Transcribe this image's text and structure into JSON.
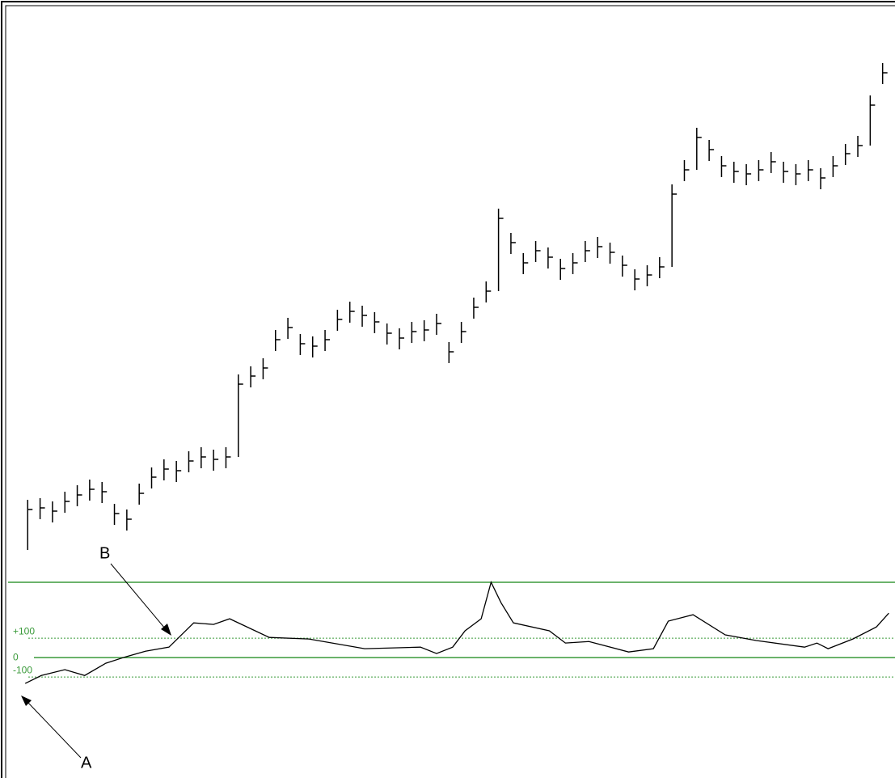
{
  "chart_data": [
    {
      "type": "ohlc",
      "color": "#000000",
      "x": [
        1,
        2,
        3,
        4,
        5,
        6,
        7,
        8,
        9,
        10,
        11,
        12,
        13,
        14,
        15,
        16,
        17,
        18,
        19,
        20,
        21,
        22,
        23,
        24,
        25,
        26,
        27,
        28,
        29,
        30,
        31,
        32,
        33,
        34,
        35,
        36,
        37,
        38,
        39,
        40,
        41,
        42,
        43,
        44,
        45,
        46,
        47,
        48,
        49,
        50,
        51,
        52,
        53,
        54,
        55,
        56,
        57,
        58,
        59,
        60,
        61,
        62,
        63,
        64,
        65,
        66,
        67,
        68,
        69,
        70
      ],
      "high": [
        72,
        74,
        70,
        82,
        90,
        97,
        94,
        67,
        60,
        92,
        112,
        122,
        120,
        132,
        137,
        134,
        137,
        227,
        237,
        247,
        282,
        297,
        277,
        274,
        282,
        307,
        317,
        312,
        304,
        290,
        284,
        292,
        294,
        302,
        267,
        292,
        322,
        342,
        432,
        402,
        377,
        392,
        384,
        370,
        377,
        392,
        397,
        390,
        374,
        357,
        362,
        372,
        462,
        492,
        532,
        517,
        497,
        490,
        487,
        492,
        502,
        490,
        487,
        492,
        482,
        497,
        512,
        522,
        572,
        612
      ],
      "low": [
        10,
        48,
        44,
        56,
        64,
        71,
        68,
        41,
        34,
        66,
        86,
        96,
        94,
        106,
        111,
        108,
        111,
        125,
        211,
        221,
        256,
        271,
        251,
        248,
        256,
        281,
        291,
        286,
        278,
        264,
        258,
        266,
        268,
        276,
        241,
        266,
        296,
        316,
        330,
        376,
        351,
        366,
        358,
        344,
        351,
        366,
        371,
        364,
        348,
        331,
        336,
        346,
        360,
        466,
        480,
        491,
        471,
        464,
        461,
        466,
        476,
        464,
        461,
        466,
        456,
        471,
        486,
        496,
        510,
        586
      ],
      "close": [
        60,
        62,
        58,
        70,
        78,
        85,
        82,
        55,
        48,
        80,
        100,
        110,
        108,
        120,
        125,
        122,
        125,
        215,
        225,
        235,
        270,
        285,
        265,
        262,
        270,
        295,
        305,
        300,
        292,
        278,
        272,
        280,
        282,
        290,
        255,
        280,
        310,
        330,
        420,
        390,
        365,
        380,
        372,
        358,
        365,
        380,
        385,
        378,
        362,
        345,
        350,
        360,
        450,
        480,
        520,
        505,
        485,
        478,
        475,
        480,
        490,
        478,
        475,
        480,
        470,
        485,
        500,
        510,
        560,
        600
      ],
      "xlim": [
        0.2,
        71
      ],
      "ylim": [
        -25,
        680
      ]
    },
    {
      "type": "line",
      "color": "#000000",
      "level_color": "#3a9a3a",
      "x": [
        0.8,
        2.1,
        4,
        5.6,
        7.3,
        8.9,
        10.5,
        12.4,
        14.4,
        16,
        17.3,
        20.5,
        23.7,
        28.2,
        32.7,
        34,
        35.3,
        36.3,
        37.6,
        38.4,
        39.2,
        40.2,
        43.1,
        44.4,
        46.3,
        49.5,
        51.5,
        52.7,
        54.7,
        57.3,
        59.8,
        63.7,
        64.7,
        65.6,
        67.6,
        69.5,
        70.5
      ],
      "values": [
        -133,
        -92,
        -62,
        -92,
        -29,
        4,
        33,
        54,
        179,
        171,
        200,
        104,
        96,
        46,
        54,
        21,
        54,
        138,
        200,
        388,
        283,
        179,
        138,
        75,
        83,
        29,
        46,
        188,
        221,
        117,
        88,
        54,
        75,
        46,
        96,
        158,
        229
      ],
      "xlim": [
        0.2,
        71
      ],
      "ylim": [
        -620,
        388
      ],
      "yticks": [
        {
          "value": 100,
          "label": "+100"
        },
        0,
        {
          "value": -100,
          "label": "-100"
        }
      ],
      "annotations": [
        "B",
        "A"
      ]
    }
  ]
}
